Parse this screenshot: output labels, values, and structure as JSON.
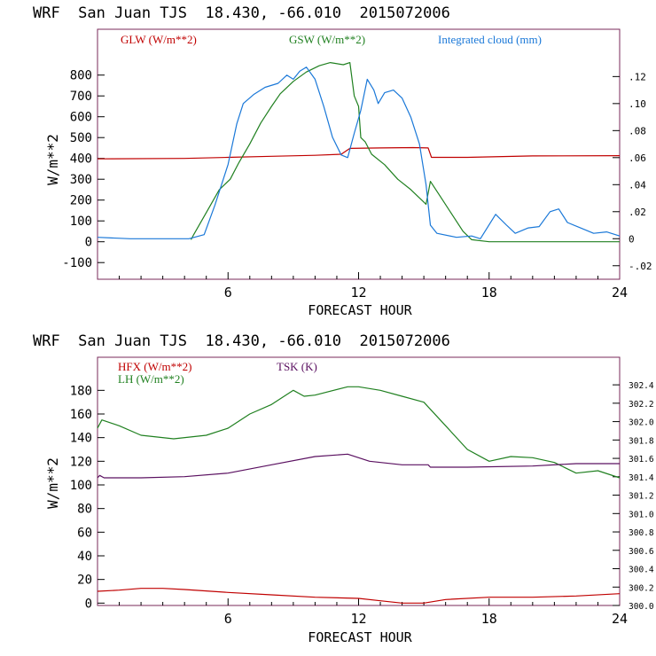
{
  "chart_data": [
    {
      "type": "line",
      "title": "WRF  San Juan TJS  18.430, -66.010  2015072006",
      "xlabel": "FORECAST HOUR",
      "ylabel": "W/m**2",
      "xlim": [
        0,
        24
      ],
      "ylim": [
        -180,
        1020
      ],
      "xticks": [
        6,
        12,
        18,
        24
      ],
      "yticks": [
        -100,
        0,
        100,
        200,
        300,
        400,
        500,
        600,
        700,
        800
      ],
      "y2lim": [
        -0.03,
        0.155
      ],
      "y2ticks": [
        -0.02,
        0,
        0.02,
        0.04,
        0.06,
        0.08,
        0.1,
        0.12
      ],
      "y2ticklabels": [
        "-.02",
        "0",
        ".02",
        ".04",
        ".06",
        ".08",
        ".10",
        ".12"
      ],
      "series": [
        {
          "name": "GLW (W/m**2)",
          "color": "#c00000",
          "axis": "left",
          "points": [
            [
              0,
              398
            ],
            [
              4,
              400
            ],
            [
              6,
              405
            ],
            [
              8,
              410
            ],
            [
              10,
              415
            ],
            [
              11.2,
              420
            ],
            [
              11.6,
              448
            ],
            [
              13,
              450
            ],
            [
              14.5,
              452
            ],
            [
              15.2,
              450
            ],
            [
              15.35,
              405
            ],
            [
              17,
              405
            ],
            [
              20,
              412
            ],
            [
              24,
              413
            ]
          ]
        },
        {
          "name": "GSW (W/m**2)",
          "color": "#208020",
          "axis": "left",
          "points": [
            [
              4.3,
              10
            ],
            [
              4.4,
              30
            ],
            [
              5,
              140
            ],
            [
              5.6,
              250
            ],
            [
              6.1,
              300
            ],
            [
              6.5,
              380
            ],
            [
              7,
              470
            ],
            [
              7.5,
              570
            ],
            [
              8,
              650
            ],
            [
              8.4,
              710
            ],
            [
              9,
              770
            ],
            [
              9.6,
              815
            ],
            [
              10.2,
              845
            ],
            [
              10.7,
              860
            ],
            [
              11.3,
              850
            ],
            [
              11.6,
              860
            ],
            [
              11.8,
              700
            ],
            [
              12,
              650
            ],
            [
              12.1,
              500
            ],
            [
              12.3,
              480
            ],
            [
              12.6,
              420
            ],
            [
              13.2,
              370
            ],
            [
              13.8,
              300
            ],
            [
              14.4,
              250
            ],
            [
              14.9,
              200
            ],
            [
              15.1,
              180
            ],
            [
              15.3,
              290
            ],
            [
              15.8,
              210
            ],
            [
              16.3,
              130
            ],
            [
              16.8,
              50
            ],
            [
              17.2,
              10
            ],
            [
              18,
              0
            ],
            [
              24,
              0
            ]
          ]
        },
        {
          "name": "Integrated cloud (mm)",
          "color": "#1a78d8",
          "axis": "right",
          "points": [
            [
              0,
              0.001
            ],
            [
              1.5,
              0
            ],
            [
              4.2,
              0
            ],
            [
              4.9,
              0.003
            ],
            [
              5.4,
              0.025
            ],
            [
              6,
              0.055
            ],
            [
              6.4,
              0.085
            ],
            [
              6.7,
              0.1
            ],
            [
              7.2,
              0.107
            ],
            [
              7.7,
              0.112
            ],
            [
              8.3,
              0.115
            ],
            [
              8.7,
              0.121
            ],
            [
              9,
              0.118
            ],
            [
              9.3,
              0.124
            ],
            [
              9.6,
              0.127
            ],
            [
              10,
              0.118
            ],
            [
              10.4,
              0.098
            ],
            [
              10.8,
              0.075
            ],
            [
              11.2,
              0.062
            ],
            [
              11.5,
              0.06
            ],
            [
              11.8,
              0.078
            ],
            [
              12.1,
              0.095
            ],
            [
              12.4,
              0.118
            ],
            [
              12.7,
              0.11
            ],
            [
              12.9,
              0.1
            ],
            [
              13.2,
              0.108
            ],
            [
              13.6,
              0.11
            ],
            [
              14,
              0.104
            ],
            [
              14.4,
              0.09
            ],
            [
              14.8,
              0.07
            ],
            [
              15.1,
              0.04
            ],
            [
              15.3,
              0.01
            ],
            [
              15.6,
              0.004
            ],
            [
              16.5,
              0.001
            ],
            [
              17.2,
              0.002
            ],
            [
              17.6,
              0
            ],
            [
              18.3,
              0.018
            ],
            [
              18.8,
              0.01
            ],
            [
              19.2,
              0.004
            ],
            [
              19.8,
              0.008
            ],
            [
              20.3,
              0.009
            ],
            [
              20.8,
              0.02
            ],
            [
              21.2,
              0.022
            ],
            [
              21.6,
              0.012
            ],
            [
              22.2,
              0.008
            ],
            [
              22.8,
              0.004
            ],
            [
              23.4,
              0.005
            ],
            [
              24,
              0.002
            ]
          ]
        }
      ]
    },
    {
      "type": "line",
      "title": "WRF  San Juan TJS  18.430, -66.010  2015072006",
      "xlabel": "FORECAST HOUR",
      "ylabel": "W/m**2",
      "xlim": [
        0,
        24
      ],
      "ylim": [
        -2,
        208
      ],
      "xticks": [
        6,
        12,
        18,
        24
      ],
      "yticks": [
        0,
        20,
        40,
        60,
        80,
        100,
        120,
        140,
        160,
        180
      ],
      "y2lim": [
        300.0,
        302.7
      ],
      "y2ticks": [
        300.0,
        300.2,
        300.4,
        300.6,
        300.8,
        301.0,
        301.2,
        301.4,
        301.6,
        301.8,
        302.0,
        302.2,
        302.4
      ],
      "y2ticklabels": [
        "300.0",
        "300.2",
        "300.4",
        "300.6",
        "300.8",
        "301.0",
        "301.2",
        "301.4",
        "301.6",
        "301.8",
        "302.0",
        "302.2",
        "302.4"
      ],
      "series": [
        {
          "name": "HFX (W/m**2)",
          "color": "#c00000",
          "axis": "left",
          "points": [
            [
              0,
              10
            ],
            [
              1,
              11
            ],
            [
              2,
              12.5
            ],
            [
              3,
              12.5
            ],
            [
              4,
              11.5
            ],
            [
              6,
              9
            ],
            [
              8,
              7
            ],
            [
              10,
              5
            ],
            [
              12,
              4
            ],
            [
              13,
              2
            ],
            [
              14,
              0
            ],
            [
              15,
              0
            ],
            [
              16,
              3
            ],
            [
              18,
              5
            ],
            [
              20,
              5
            ],
            [
              22,
              6
            ],
            [
              24,
              8
            ]
          ]
        },
        {
          "name": "LH (W/m**2)",
          "color": "#208020",
          "axis": "left",
          "points": [
            [
              0,
              148
            ],
            [
              0.2,
              155
            ],
            [
              1,
              150
            ],
            [
              2,
              142
            ],
            [
              3.5,
              139
            ],
            [
              5,
              142
            ],
            [
              6,
              148
            ],
            [
              7,
              160
            ],
            [
              8,
              168
            ],
            [
              9,
              180
            ],
            [
              9.5,
              175
            ],
            [
              10,
              176
            ],
            [
              11.5,
              183
            ],
            [
              12,
              183
            ],
            [
              13,
              180
            ],
            [
              14,
              175
            ],
            [
              15,
              170
            ],
            [
              16,
              150
            ],
            [
              17,
              130
            ],
            [
              18,
              120
            ],
            [
              19,
              124
            ],
            [
              20,
              123
            ],
            [
              21,
              119
            ],
            [
              22,
              110
            ],
            [
              23,
              112
            ],
            [
              24,
              106
            ]
          ]
        },
        {
          "name": "TSK (K)",
          "color": "#5a1060",
          "axis": "left",
          "points": [
            [
              0,
              106
            ],
            [
              0.1,
              108
            ],
            [
              0.3,
              106
            ],
            [
              2,
              106
            ],
            [
              4,
              107
            ],
            [
              6,
              110
            ],
            [
              8,
              117
            ],
            [
              10,
              124
            ],
            [
              11.5,
              126
            ],
            [
              12.5,
              120
            ],
            [
              14,
              117
            ],
            [
              15.2,
              117
            ],
            [
              15.3,
              115
            ],
            [
              17,
              115
            ],
            [
              20,
              116
            ],
            [
              22,
              118
            ],
            [
              24,
              118
            ]
          ]
        }
      ]
    }
  ]
}
